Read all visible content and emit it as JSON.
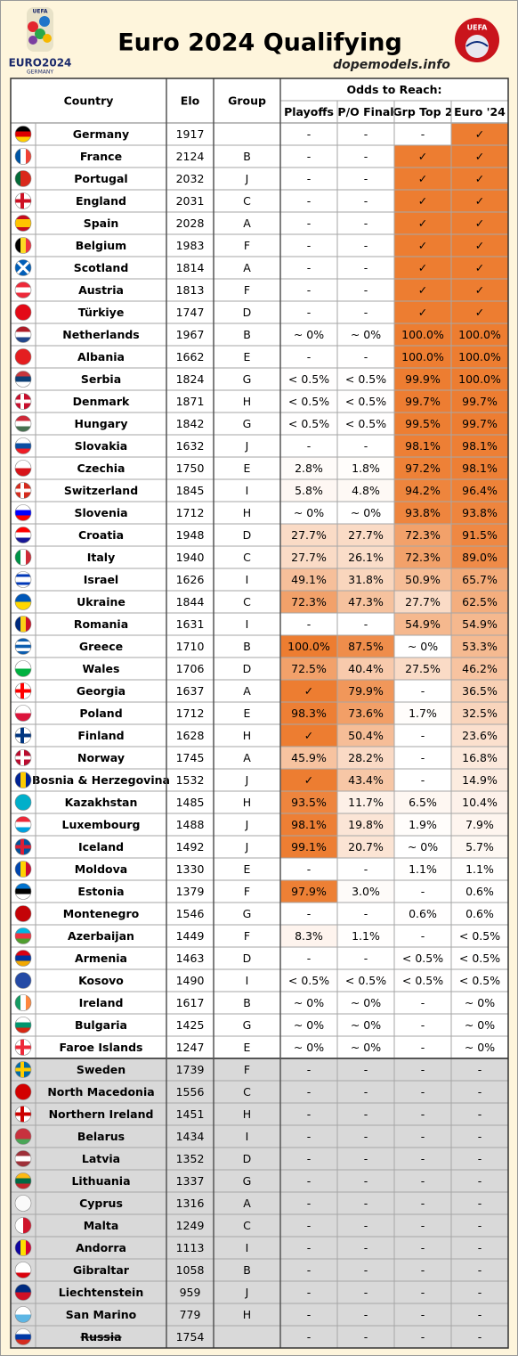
{
  "header": {
    "title": "Euro 2024 Qualifying",
    "site": "dopemodels.info",
    "logo_left": {
      "brand": "UEFA",
      "name": "EURO2024",
      "host": "GERMANY"
    },
    "logo_right": "UEFA"
  },
  "table": {
    "columns": [
      "Country",
      "Elo",
      "Group"
    ],
    "group_header": "Odds to Reach:",
    "odds_columns": [
      "Playoffs",
      "P/O Final",
      "Grp Top 2",
      "Euro '24"
    ],
    "rows": [
      [
        "Germany",
        1917,
        null,
        "-",
        "-",
        "-",
        "✓"
      ],
      [
        "France",
        2124,
        "B",
        "-",
        "-",
        "✓",
        "✓"
      ],
      [
        "Portugal",
        2032,
        "J",
        "-",
        "-",
        "✓",
        "✓"
      ],
      [
        "England",
        2031,
        "C",
        "-",
        "-",
        "✓",
        "✓"
      ],
      [
        "Spain",
        2028,
        "A",
        "-",
        "-",
        "✓",
        "✓"
      ],
      [
        "Belgium",
        1983,
        "F",
        "-",
        "-",
        "✓",
        "✓"
      ],
      [
        "Scotland",
        1814,
        "A",
        "-",
        "-",
        "✓",
        "✓"
      ],
      [
        "Austria",
        1813,
        "F",
        "-",
        "-",
        "✓",
        "✓"
      ],
      [
        "Türkiye",
        1747,
        "D",
        "-",
        "-",
        "✓",
        "✓"
      ],
      [
        "Netherlands",
        1967,
        "B",
        "~ 0%",
        "~ 0%",
        "100.0%",
        "100.0%"
      ],
      [
        "Albania",
        1662,
        "E",
        "-",
        "-",
        "100.0%",
        "100.0%"
      ],
      [
        "Serbia",
        1824,
        "G",
        "< 0.5%",
        "< 0.5%",
        "99.9%",
        "100.0%"
      ],
      [
        "Denmark",
        1871,
        "H",
        "< 0.5%",
        "< 0.5%",
        "99.7%",
        "99.7%"
      ],
      [
        "Hungary",
        1842,
        "G",
        "< 0.5%",
        "< 0.5%",
        "99.5%",
        "99.7%"
      ],
      [
        "Slovakia",
        1632,
        "J",
        "-",
        "-",
        "98.1%",
        "98.1%"
      ],
      [
        "Czechia",
        1750,
        "E",
        "2.8%",
        "1.8%",
        "97.2%",
        "98.1%"
      ],
      [
        "Switzerland",
        1845,
        "I",
        "5.8%",
        "4.8%",
        "94.2%",
        "96.4%"
      ],
      [
        "Slovenia",
        1712,
        "H",
        "~ 0%",
        "~ 0%",
        "93.8%",
        "93.8%"
      ],
      [
        "Croatia",
        1948,
        "D",
        "27.7%",
        "27.7%",
        "72.3%",
        "91.5%"
      ],
      [
        "Italy",
        1940,
        "C",
        "27.7%",
        "26.1%",
        "72.3%",
        "89.0%"
      ],
      [
        "Israel",
        1626,
        "I",
        "49.1%",
        "31.8%",
        "50.9%",
        "65.7%"
      ],
      [
        "Ukraine",
        1844,
        "C",
        "72.3%",
        "47.3%",
        "27.7%",
        "62.5%"
      ],
      [
        "Romania",
        1631,
        "I",
        "-",
        "-",
        "54.9%",
        "54.9%"
      ],
      [
        "Greece",
        1710,
        "B",
        "100.0%",
        "87.5%",
        "~ 0%",
        "53.3%"
      ],
      [
        "Wales",
        1706,
        "D",
        "72.5%",
        "40.4%",
        "27.5%",
        "46.2%"
      ],
      [
        "Georgia",
        1637,
        "A",
        "✓",
        "79.9%",
        "-",
        "36.5%"
      ],
      [
        "Poland",
        1712,
        "E",
        "98.3%",
        "73.6%",
        "1.7%",
        "32.5%"
      ],
      [
        "Finland",
        1628,
        "H",
        "✓",
        "50.4%",
        "-",
        "23.6%"
      ],
      [
        "Norway",
        1745,
        "A",
        "45.9%",
        "28.2%",
        "-",
        "16.8%"
      ],
      [
        "Bosnia & Herzegovina",
        1532,
        "J",
        "✓",
        "43.4%",
        "-",
        "14.9%"
      ],
      [
        "Kazakhstan",
        1485,
        "H",
        "93.5%",
        "11.7%",
        "6.5%",
        "10.4%"
      ],
      [
        "Luxembourg",
        1488,
        "J",
        "98.1%",
        "19.8%",
        "1.9%",
        "7.9%"
      ],
      [
        "Iceland",
        1492,
        "J",
        "99.1%",
        "20.7%",
        "~ 0%",
        "5.7%"
      ],
      [
        "Moldova",
        1330,
        "E",
        "-",
        "-",
        "1.1%",
        "1.1%"
      ],
      [
        "Estonia",
        1379,
        "F",
        "97.9%",
        "3.0%",
        "-",
        "0.6%"
      ],
      [
        "Montenegro",
        1546,
        "G",
        "-",
        "-",
        "0.6%",
        "0.6%"
      ],
      [
        "Azerbaijan",
        1449,
        "F",
        "8.3%",
        "1.1%",
        "-",
        "< 0.5%"
      ],
      [
        "Armenia",
        1463,
        "D",
        "-",
        "-",
        "< 0.5%",
        "< 0.5%"
      ],
      [
        "Kosovo",
        1490,
        "I",
        "< 0.5%",
        "< 0.5%",
        "< 0.5%",
        "< 0.5%"
      ],
      [
        "Ireland",
        1617,
        "B",
        "~ 0%",
        "~ 0%",
        "-",
        "~ 0%"
      ],
      [
        "Bulgaria",
        1425,
        "G",
        "~ 0%",
        "~ 0%",
        "-",
        "~ 0%"
      ],
      [
        "Faroe Islands",
        1247,
        "E",
        "~ 0%",
        "~ 0%",
        "-",
        "~ 0%"
      ],
      [
        "Sweden",
        1739,
        "F",
        "-",
        "-",
        "-",
        "-"
      ],
      [
        "North Macedonia",
        1556,
        "C",
        "-",
        "-",
        "-",
        "-"
      ],
      [
        "Northern Ireland",
        1451,
        "H",
        "-",
        "-",
        "-",
        "-"
      ],
      [
        "Belarus",
        1434,
        "I",
        "-",
        "-",
        "-",
        "-"
      ],
      [
        "Latvia",
        1352,
        "D",
        "-",
        "-",
        "-",
        "-"
      ],
      [
        "Lithuania",
        1337,
        "G",
        "-",
        "-",
        "-",
        "-"
      ],
      [
        "Cyprus",
        1316,
        "A",
        "-",
        "-",
        "-",
        "-"
      ],
      [
        "Malta",
        1249,
        "C",
        "-",
        "-",
        "-",
        "-"
      ],
      [
        "Andorra",
        1113,
        "I",
        "-",
        "-",
        "-",
        "-"
      ],
      [
        "Gibraltar",
        1058,
        "B",
        "-",
        "-",
        "-",
        "-"
      ],
      [
        "Liechtenstein",
        959,
        "J",
        "-",
        "-",
        "-",
        "-"
      ],
      [
        "San Marino",
        779,
        "H",
        "-",
        "-",
        "-",
        "-"
      ],
      [
        "Russia",
        1754,
        null,
        "-",
        "-",
        "-",
        "-"
      ]
    ]
  }
}
